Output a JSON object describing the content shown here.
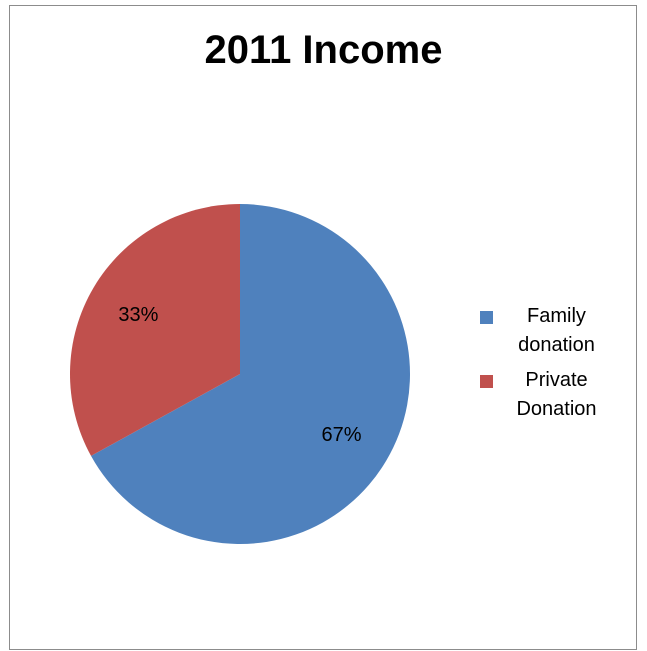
{
  "chart_data": {
    "type": "pie",
    "title": "2011 Income",
    "slices": [
      {
        "label": "Family donation",
        "legend_label": "Family\ndonation",
        "value": 67,
        "data_label": "67%",
        "color": "#4f81bd"
      },
      {
        "label": "Private Donation",
        "legend_label": "Private\nDonation",
        "value": 33,
        "data_label": "33%",
        "color": "#c0504d"
      }
    ],
    "start_angle_deg": 0,
    "direction": "clockwise",
    "legend_position": "right"
  }
}
